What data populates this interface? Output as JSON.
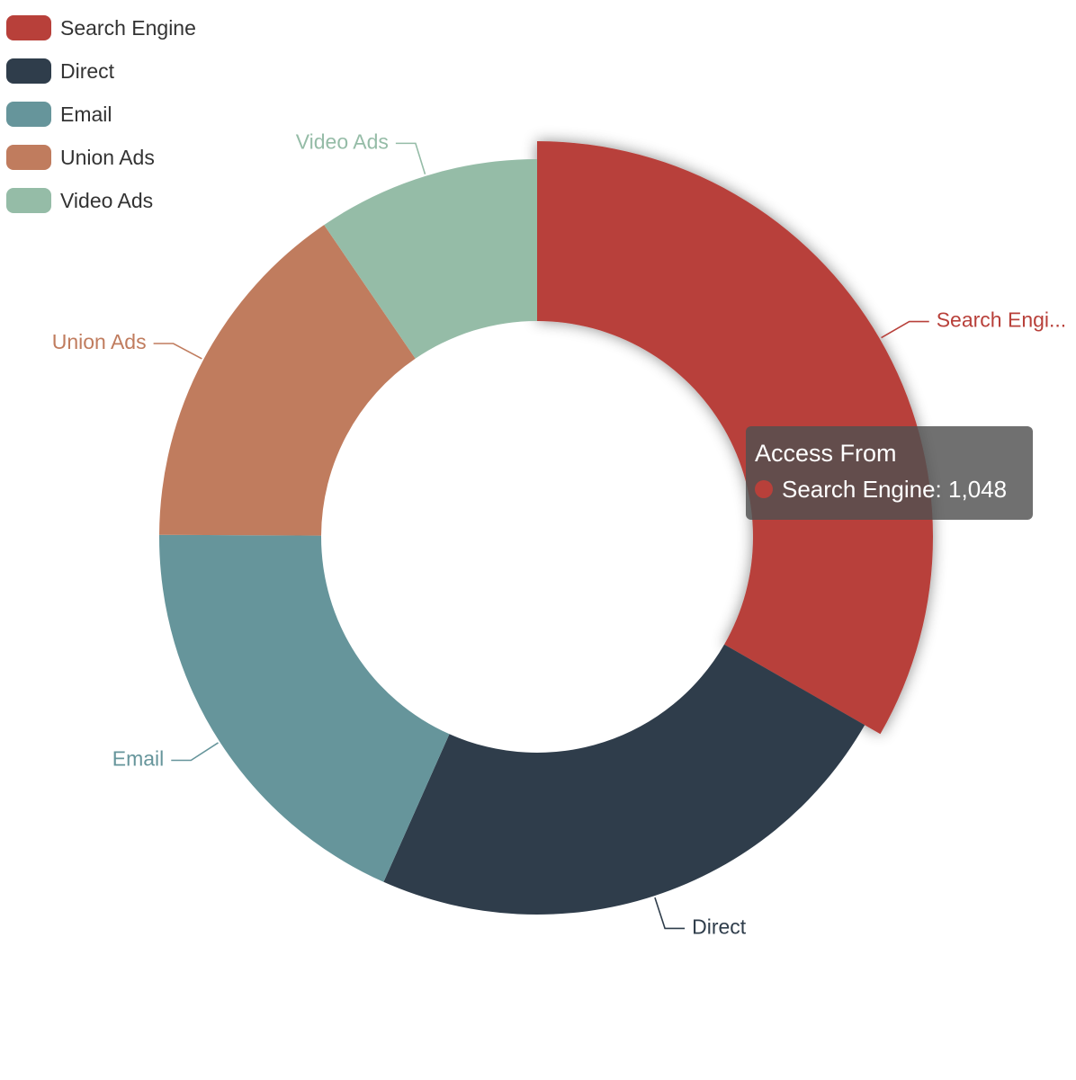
{
  "chart_data": {
    "type": "pie",
    "series_name": "Access From",
    "donut": true,
    "colors": [
      "#b8403a",
      "#2f3d4b",
      "#66959b",
      "#c07c5e",
      "#95bca7"
    ],
    "data": [
      {
        "name": "Search Engine",
        "value": 1048,
        "label": "Search Engi..."
      },
      {
        "name": "Direct",
        "value": 735,
        "label": "Direct"
      },
      {
        "name": "Email",
        "value": 580,
        "label": "Email"
      },
      {
        "name": "Union Ads",
        "value": 484,
        "label": "Union Ads"
      },
      {
        "name": "Video Ads",
        "value": 300,
        "label": "Video Ads"
      }
    ],
    "highlighted": "Search Engine",
    "legend_position": "top-left"
  },
  "legend": {
    "items": [
      {
        "label": "Search Engine",
        "color": "#b8403a"
      },
      {
        "label": "Direct",
        "color": "#2f3d4b"
      },
      {
        "label": "Email",
        "color": "#66959b"
      },
      {
        "label": "Union Ads",
        "color": "#c07c5e"
      },
      {
        "label": "Video Ads",
        "color": "#95bca7"
      }
    ]
  },
  "tooltip": {
    "title": "Access From",
    "series_label": "Search Engine: 1,048",
    "color": "#b8403a"
  }
}
